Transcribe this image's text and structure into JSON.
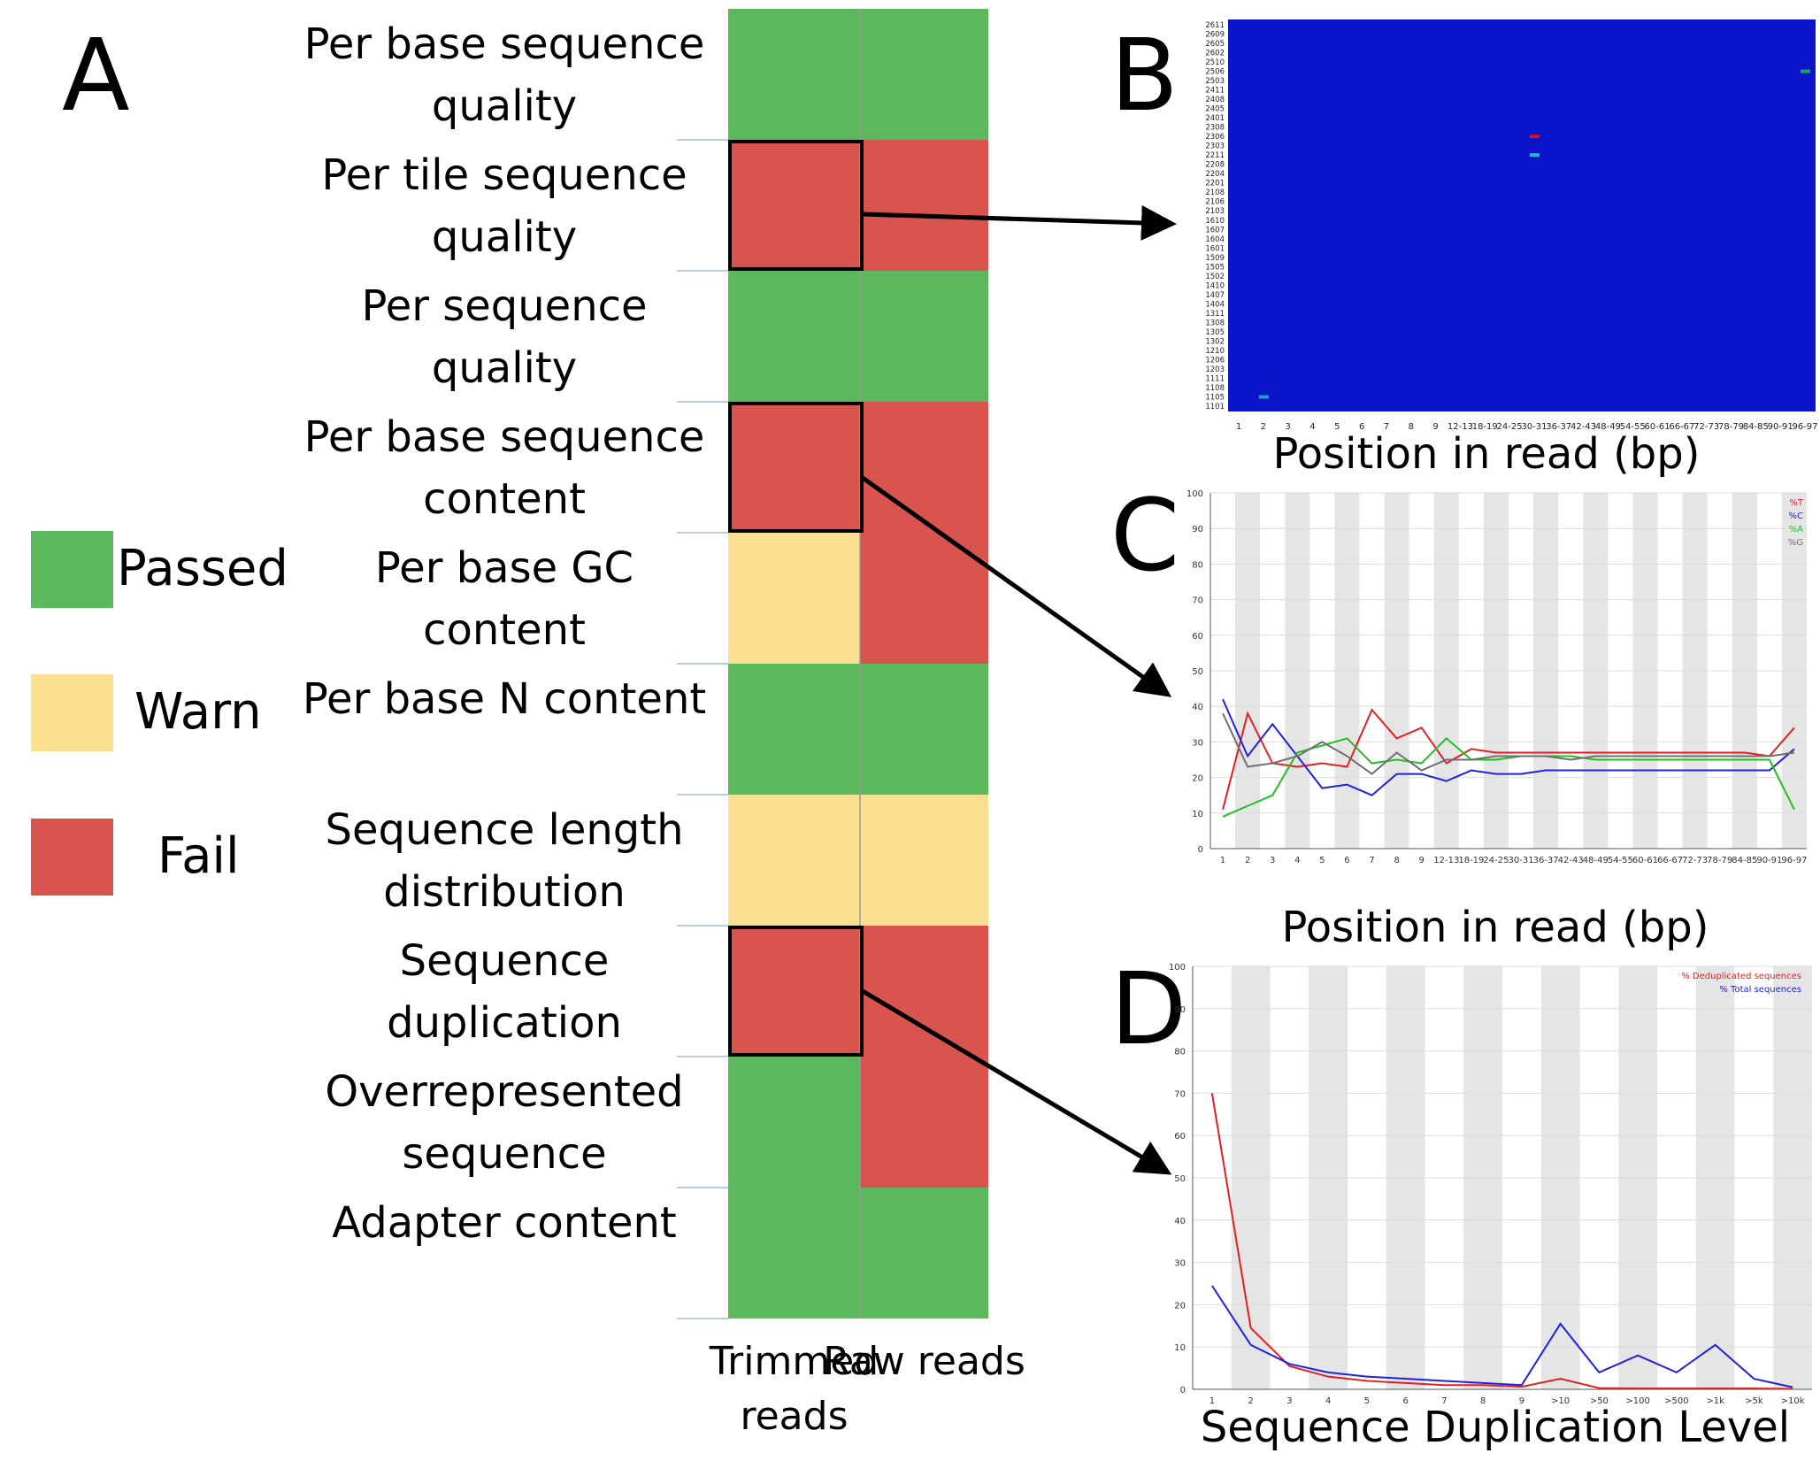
{
  "colors": {
    "passed": "#5cb85c",
    "warn": "#fbe092",
    "fail": "#d9534f"
  },
  "panelA": {
    "letter": "A",
    "legend": [
      {
        "label": "Passed",
        "status": "passed"
      },
      {
        "label": "Warn",
        "status": "warn"
      },
      {
        "label": "Fail",
        "status": "fail"
      }
    ],
    "columns": [
      "Trimmed reads",
      "Raw reads"
    ],
    "rows": [
      {
        "label": "Per base sequence quality",
        "trimmed": "passed",
        "raw": "passed"
      },
      {
        "label": "Per tile sequence quality",
        "trimmed": "fail",
        "raw": "fail"
      },
      {
        "label": "Per sequence quality",
        "trimmed": "passed",
        "raw": "passed"
      },
      {
        "label": "Per base sequence content",
        "trimmed": "fail",
        "raw": "fail"
      },
      {
        "label": "Per base GC content",
        "trimmed": "warn",
        "raw": "fail"
      },
      {
        "label": "Per base N content",
        "trimmed": "passed",
        "raw": "passed"
      },
      {
        "label": "Sequence length distribution",
        "trimmed": "warn",
        "raw": "warn"
      },
      {
        "label": "Sequence duplication",
        "trimmed": "fail",
        "raw": "fail"
      },
      {
        "label": "Overrepresented sequence",
        "trimmed": "passed",
        "raw": "fail"
      },
      {
        "label": "Adapter content",
        "trimmed": "passed",
        "raw": "passed"
      }
    ],
    "highlighted_rows": [
      1,
      3,
      7
    ]
  },
  "chart_data": [
    {
      "panel": "B",
      "type": "heatmap",
      "xlabel": "Position in read (bp)",
      "x_ticks": [
        "1",
        "2",
        "3",
        "4",
        "5",
        "6",
        "7",
        "8",
        "9",
        "12-13",
        "18-19",
        "24-25",
        "30-31",
        "36-37",
        "42-43",
        "48-49",
        "54-55",
        "60-61",
        "66-67",
        "72-73",
        "78-79",
        "84-85",
        "90-91",
        "96-97"
      ],
      "y_ticks": [
        "2611",
        "2609",
        "2605",
        "2602",
        "2510",
        "2506",
        "2503",
        "2411",
        "2408",
        "2405",
        "2401",
        "2308",
        "2306",
        "2303",
        "2211",
        "2208",
        "2204",
        "2201",
        "2108",
        "2106",
        "2103",
        "1610",
        "1607",
        "1604",
        "1601",
        "1509",
        "1505",
        "1502",
        "1410",
        "1407",
        "1404",
        "1311",
        "1308",
        "1305",
        "1302",
        "1210",
        "1206",
        "1203",
        "1111",
        "1108",
        "1105",
        "1101"
      ],
      "background_color": "#0a14c8",
      "hotspots": [
        {
          "x": "96-97",
          "tile": "2506",
          "color": "#1fa35a"
        },
        {
          "x": "30-31",
          "tile": "2306",
          "color": "#e01010"
        },
        {
          "x": "30-31",
          "tile": "2211",
          "color": "#18c0c0"
        },
        {
          "x": "2",
          "tile": "1105",
          "color": "#18a0c8"
        }
      ]
    },
    {
      "panel": "C",
      "type": "line",
      "xlabel": "Position in read (bp)",
      "x_ticks": [
        "1",
        "2",
        "3",
        "4",
        "5",
        "6",
        "7",
        "8",
        "9",
        "12-13",
        "18-19",
        "24-25",
        "30-31",
        "36-37",
        "42-43",
        "48-49",
        "54-55",
        "60-61",
        "66-67",
        "72-73",
        "78-79",
        "84-85",
        "90-91",
        "96-97"
      ],
      "ylim": [
        0,
        100
      ],
      "y_ticks": [
        "0",
        "10",
        "20",
        "30",
        "40",
        "50",
        "60",
        "70",
        "80",
        "90",
        "100"
      ],
      "series": [
        {
          "name": "%T",
          "color": "#e02020",
          "values": [
            11,
            38,
            24,
            23,
            24,
            23,
            39,
            31,
            34,
            24,
            28,
            27,
            27,
            27,
            27,
            27,
            27,
            27,
            27,
            27,
            27,
            27,
            26,
            34
          ]
        },
        {
          "name": "%C",
          "color": "#2020e0",
          "values": [
            42,
            26,
            35,
            26,
            17,
            18,
            15,
            21,
            21,
            19,
            22,
            21,
            21,
            22,
            22,
            22,
            22,
            22,
            22,
            22,
            22,
            22,
            22,
            28
          ]
        },
        {
          "name": "%A",
          "color": "#20c020",
          "values": [
            9,
            12,
            15,
            27,
            29,
            31,
            24,
            25,
            24,
            31,
            25,
            25,
            26,
            26,
            26,
            25,
            25,
            25,
            25,
            25,
            25,
            25,
            25,
            11
          ]
        },
        {
          "name": "%G",
          "color": "#707070",
          "values": [
            38,
            23,
            24,
            26,
            30,
            26,
            21,
            27,
            22,
            25,
            25,
            26,
            26,
            26,
            25,
            26,
            26,
            26,
            26,
            26,
            26,
            26,
            26,
            27
          ]
        }
      ]
    },
    {
      "panel": "D",
      "type": "line",
      "xlabel": "Sequence Duplication Level",
      "categories": [
        "1",
        "2",
        "3",
        "4",
        "5",
        "6",
        "7",
        "8",
        "9",
        ">10",
        ">50",
        ">100",
        ">500",
        ">1k",
        ">5k",
        ">10k"
      ],
      "ylim": [
        0,
        100
      ],
      "y_ticks": [
        "0",
        "10",
        "20",
        "30",
        "40",
        "50",
        "60",
        "70",
        "80",
        "90",
        "100"
      ],
      "series": [
        {
          "name": "% Deduplicated sequences",
          "color": "#e02020",
          "values": [
            70,
            14.5,
            5.5,
            3,
            2,
            1.5,
            1,
            1,
            0.6,
            2.5,
            0.3,
            0.2,
            0.2,
            0.2,
            0.2,
            0.1
          ]
        },
        {
          "name": "% Total sequences",
          "color": "#2020e0",
          "values": [
            24.5,
            10.5,
            6,
            4,
            3,
            2.5,
            2,
            1.5,
            1,
            15.5,
            4,
            8,
            4,
            10.5,
            2.5,
            0.5
          ]
        }
      ]
    }
  ]
}
